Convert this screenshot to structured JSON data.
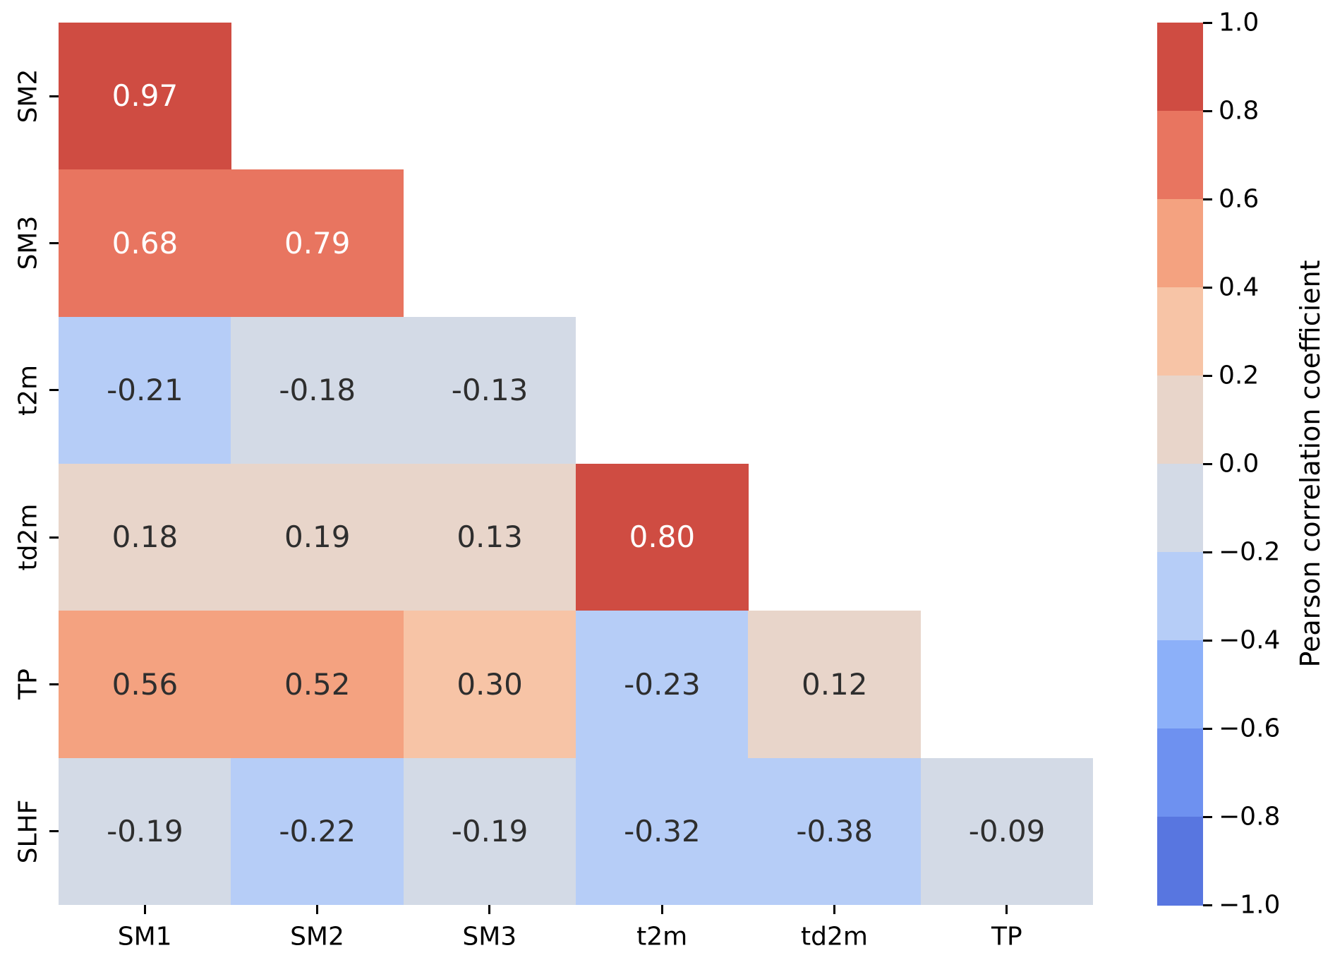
{
  "chart_data": {
    "type": "heatmap",
    "title": "",
    "description": "Lower-triangular Pearson correlation matrix heatmap",
    "rows": [
      "SM2",
      "SM3",
      "t2m",
      "td2m",
      "TP",
      "SLHF"
    ],
    "cols": [
      "SM1",
      "SM2",
      "SM3",
      "t2m",
      "td2m",
      "TP"
    ],
    "values": [
      [
        0.97
      ],
      [
        0.68,
        0.79
      ],
      [
        -0.21,
        -0.18,
        -0.13
      ],
      [
        0.18,
        0.19,
        0.13,
        0.8
      ],
      [
        0.56,
        0.52,
        0.3,
        -0.23,
        0.12
      ],
      [
        -0.19,
        -0.22,
        -0.19,
        -0.32,
        -0.38,
        -0.09
      ]
    ],
    "cell_labels": [
      [
        "0.97"
      ],
      [
        "0.68",
        "0.79"
      ],
      [
        "-0.21",
        "-0.18",
        "-0.13"
      ],
      [
        "0.18",
        "0.19",
        "0.13",
        "0.80"
      ],
      [
        "0.56",
        "0.52",
        "0.30",
        "-0.23",
        "0.12"
      ],
      [
        "-0.19",
        "-0.22",
        "-0.19",
        "-0.32",
        "-0.38",
        "-0.09"
      ]
    ],
    "vmin": -1.0,
    "vmax": 1.0,
    "grid": false,
    "colormap": "coolwarm (10 discrete bins)",
    "color_bins": [
      {
        "min": 0.8,
        "max": 1.0,
        "color": "#cf4c42"
      },
      {
        "min": 0.6,
        "max": 0.8,
        "color": "#e87560"
      },
      {
        "min": 0.4,
        "max": 0.6,
        "color": "#f4a280"
      },
      {
        "min": 0.2,
        "max": 0.4,
        "color": "#f7c4a6"
      },
      {
        "min": 0.0,
        "max": 0.2,
        "color": "#e8d5ca"
      },
      {
        "min": -0.2,
        "max": 0.0,
        "color": "#d3dae6"
      },
      {
        "min": -0.4,
        "max": -0.2,
        "color": "#b6cdf7"
      },
      {
        "min": -0.6,
        "max": -0.4,
        "color": "#8cb0f9"
      },
      {
        "min": -0.8,
        "max": -0.6,
        "color": "#6e91f0"
      },
      {
        "min": -1.0,
        "max": -0.8,
        "color": "#5876e0"
      }
    ],
    "annotation_colors": {
      "dark_text": "#2e2e2e",
      "light_text": "#ffffff",
      "light_text_abs_threshold": 0.6
    },
    "colorbar": {
      "label": "Pearson correlation coefficient",
      "position": "right",
      "tick_labels": [
        "1.0",
        "0.8",
        "0.6",
        "0.4",
        "0.2",
        "0.0",
        "−0.2",
        "−0.4",
        "−0.6",
        "−0.8",
        "−1.0"
      ],
      "tick_values": [
        1.0,
        0.8,
        0.6,
        0.4,
        0.2,
        0.0,
        -0.2,
        -0.4,
        -0.6,
        -0.8,
        -1.0
      ]
    }
  }
}
